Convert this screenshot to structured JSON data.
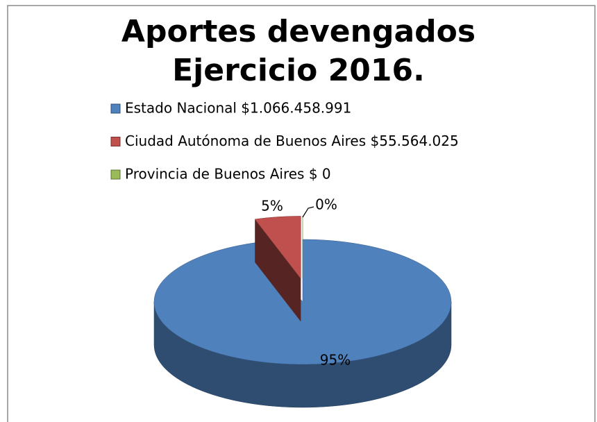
{
  "chart_data": {
    "type": "pie",
    "title": "Aportes devengados Ejercicio 2016.",
    "categories": [
      "Estado Nacional $1.066.458.991",
      "Ciudad Autónoma de Buenos Aires  $55.564.025",
      "Provincia de Buenos Aires $ 0"
    ],
    "values": [
      95,
      5,
      0
    ],
    "value_labels": [
      "95%",
      "5%",
      "0%"
    ],
    "colors": [
      "#4f81bd",
      "#c0504d",
      "#9bbb59"
    ]
  }
}
